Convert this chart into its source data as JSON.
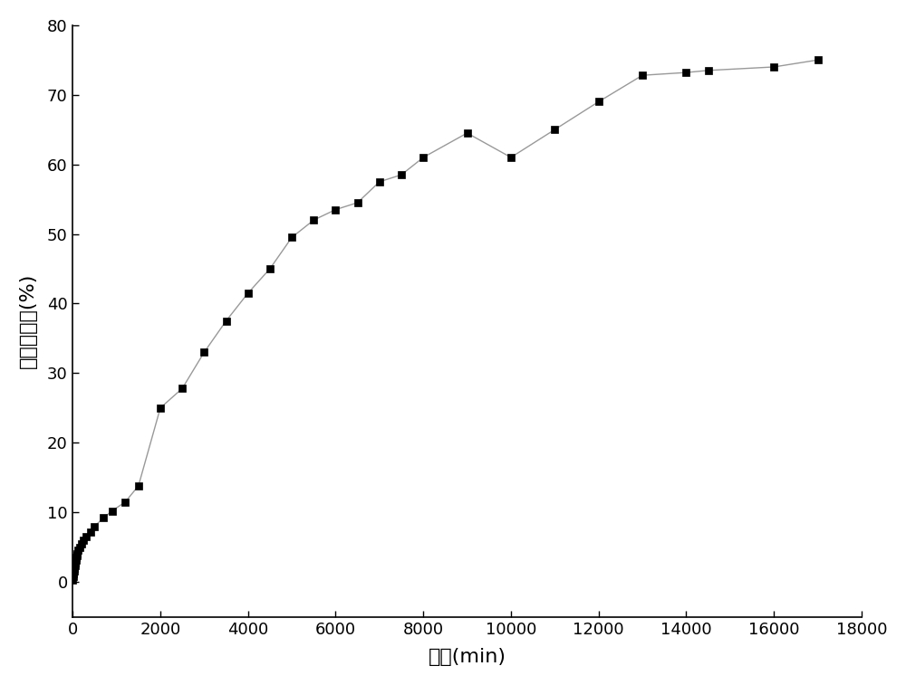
{
  "x": [
    0,
    10,
    20,
    30,
    40,
    50,
    60,
    70,
    80,
    90,
    100,
    120,
    150,
    200,
    250,
    300,
    400,
    500,
    700,
    900,
    1200,
    1500,
    2000,
    2500,
    3000,
    3500,
    4000,
    4500,
    5000,
    5500,
    6000,
    6500,
    7000,
    7500,
    8000,
    9000,
    10000,
    11000,
    12000,
    13000,
    14000,
    14500,
    16000,
    17000
  ],
  "y": [
    0.3,
    0.8,
    1.2,
    1.6,
    2.0,
    2.4,
    2.8,
    3.1,
    3.5,
    3.8,
    4.1,
    4.5,
    5.0,
    5.5,
    6.0,
    6.5,
    7.2,
    8.0,
    9.2,
    10.2,
    11.5,
    13.8,
    25.0,
    27.8,
    33.0,
    37.5,
    41.5,
    45.0,
    49.5,
    52.0,
    53.5,
    54.5,
    57.5,
    58.5,
    61.0,
    64.5,
    61.0,
    65.0,
    69.0,
    72.8,
    73.2,
    73.5,
    74.0,
    75.0
  ],
  "xlabel": "时间(min)",
  "ylabel": "药物释放量(%)",
  "xlim": [
    0,
    18000
  ],
  "ylim": [
    -5,
    80
  ],
  "xticks": [
    0,
    2000,
    4000,
    6000,
    8000,
    10000,
    12000,
    14000,
    16000,
    18000
  ],
  "yticks": [
    0,
    10,
    20,
    30,
    40,
    50,
    60,
    70,
    80
  ],
  "line_color": "#999999",
  "marker_color": "#000000",
  "bg_color": "#ffffff",
  "fontsize_label": 16,
  "fontsize_tick": 13
}
